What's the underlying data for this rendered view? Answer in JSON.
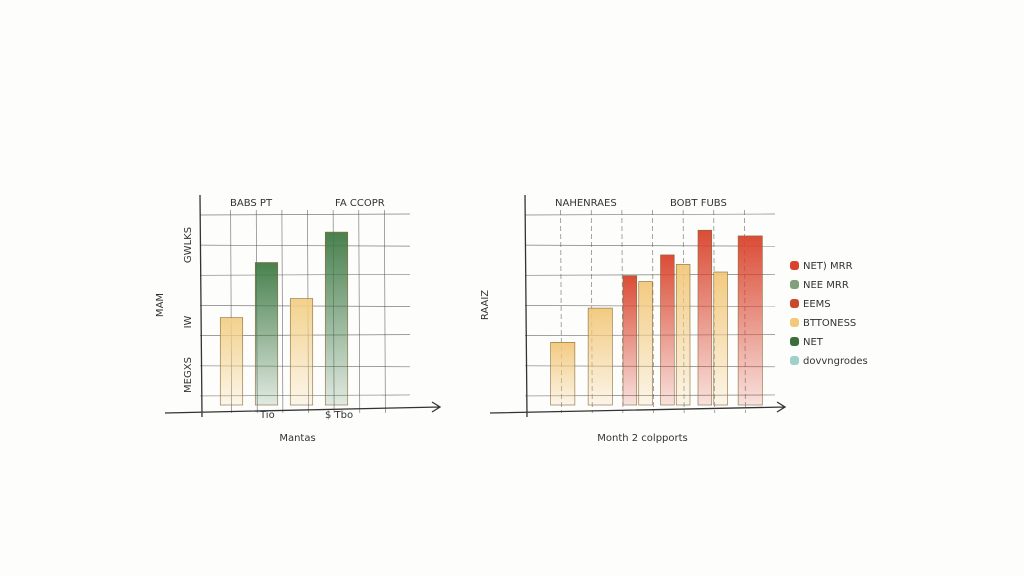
{
  "chart_data": [
    {
      "type": "bar",
      "annotations": [
        "BABS PT",
        "FA CCOPR"
      ],
      "y_label": "MAM",
      "x_label": "Mantas",
      "x_labels": [
        "Tio",
        "$ Tbo"
      ],
      "y_labels": [
        "GWLKS",
        "IW",
        "MEGXS"
      ],
      "categories": [
        null,
        null,
        null,
        null
      ],
      "series": [
        {
          "color": "#f2cf86",
          "values": [
            46,
            null,
            56,
            null
          ]
        },
        {
          "color": "#3f7a45",
          "values": [
            null,
            75,
            null,
            91
          ]
        }
      ],
      "ylim": [
        0,
        100
      ],
      "grid": true
    },
    {
      "type": "bar",
      "annotations": [
        "NAHENRAES",
        "BOBT FUBS"
      ],
      "y_label": "RAAIZ",
      "x_label": "Month 2 colpports",
      "categories": [
        null,
        null,
        null,
        null,
        null,
        null
      ],
      "series": [
        {
          "name": "NET) MRR",
          "color": "#d9432c",
          "values": [
            null,
            null,
            68,
            79,
            92,
            89
          ]
        },
        {
          "name": "NEE MRR",
          "color": "#7fa07a",
          "values": [
            null,
            null,
            null,
            null,
            null,
            null
          ]
        },
        {
          "name": "EEMS",
          "color": "#c94a2a",
          "values": [
            null,
            null,
            null,
            null,
            null,
            null
          ]
        },
        {
          "name": "BTTONESS",
          "color": "#f2c87a",
          "values": [
            33,
            51,
            65,
            74,
            70,
            null
          ]
        },
        {
          "name": "NET",
          "color": "#3c6e3c",
          "values": [
            null,
            null,
            null,
            null,
            null,
            null
          ]
        },
        {
          "name": "dovvngrodes",
          "color": "#9fd0cc",
          "values": [
            null,
            null,
            null,
            null,
            null,
            null
          ]
        }
      ],
      "ylim": [
        0,
        100
      ],
      "grid": true,
      "legend": "right"
    }
  ]
}
